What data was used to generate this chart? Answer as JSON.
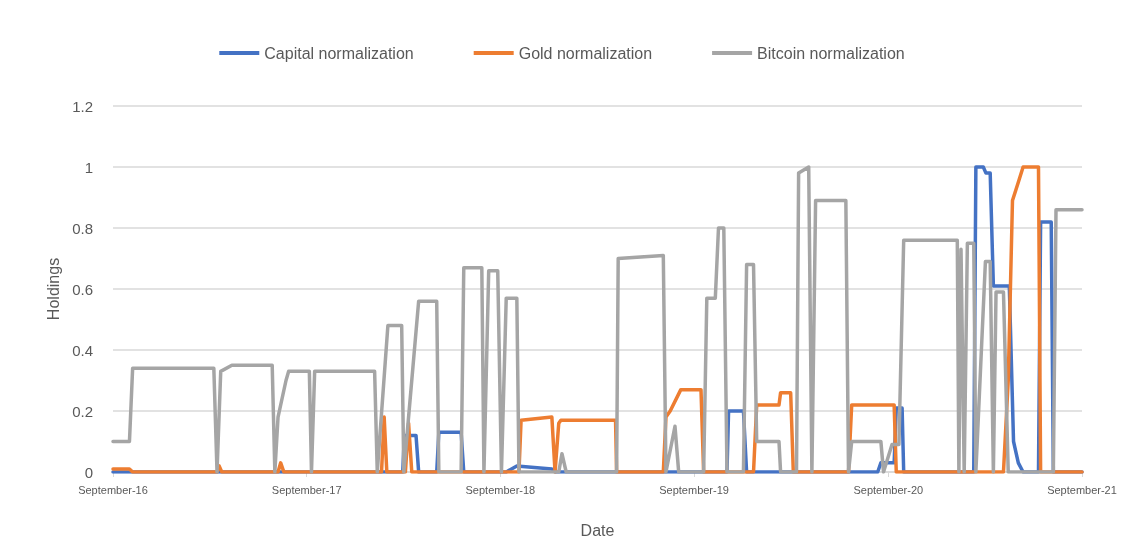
{
  "chart_data": {
    "type": "line",
    "xlabel": "Date",
    "ylabel": "Holdings",
    "xlim": [
      "2016-09-01",
      "2021-09-01"
    ],
    "xticks": [
      {
        "value": "2016-09-01",
        "label": "September-16"
      },
      {
        "value": "2017-09-01",
        "label": "September-17"
      },
      {
        "value": "2018-09-01",
        "label": "September-18"
      },
      {
        "value": "2019-09-01",
        "label": "September-19"
      },
      {
        "value": "2020-09-01",
        "label": "September-20"
      },
      {
        "value": "2021-09-01",
        "label": "September-21"
      }
    ],
    "ylim": [
      0,
      1.2
    ],
    "yticks": [
      0,
      0.2,
      0.4,
      0.6,
      0.8,
      1,
      1.2
    ],
    "grid": "y",
    "legend": "top",
    "marker": "none",
    "line_style": "solid",
    "series": [
      {
        "name": "Capital normalization",
        "color": "#4472c4",
        "x": [
          "2016-09-01",
          "2018-03-01",
          "2018-03-04",
          "2018-03-26",
          "2018-03-31",
          "2018-05-04",
          "2018-05-08",
          "2018-06-19",
          "2018-06-24",
          "2018-09-12",
          "2018-10-02",
          "2018-12-07",
          "2018-12-13",
          "2019-09-19",
          "2019-11-02",
          "2019-11-05",
          "2019-12-03",
          "2019-12-09",
          "2020-08-12",
          "2020-08-18",
          "2020-09-12",
          "2020-09-16",
          "2020-09-27",
          "2020-09-30",
          "2021-02-09",
          "2021-02-13",
          "2021-02-27",
          "2021-03-04",
          "2021-03-12",
          "2021-03-18",
          "2021-04-17",
          "2021-04-25",
          "2021-05-04",
          "2021-05-13",
          "2021-06-11",
          "2021-06-15",
          "2021-07-05",
          "2021-07-09",
          "2021-09-01"
        ],
        "values": [
          0,
          0,
          0.12,
          0.12,
          0,
          0,
          0.13,
          0.13,
          0,
          0,
          0.02,
          0.01,
          0,
          0,
          0,
          0.2,
          0.2,
          0,
          0,
          0.03,
          0.03,
          0.21,
          0.21,
          0,
          0,
          1.0,
          1.0,
          0.98,
          0.98,
          0.61,
          0.61,
          0.1,
          0.03,
          0,
          0,
          0.82,
          0.82,
          0,
          0
        ]
      },
      {
        "name": "Gold normalization",
        "color": "#ed7d31",
        "x": [
          "2016-09-01",
          "2016-10-02",
          "2016-10-08",
          "2017-03-16",
          "2017-03-20",
          "2017-03-25",
          "2017-07-09",
          "2017-07-14",
          "2017-07-20",
          "2018-01-20",
          "2018-01-25",
          "2018-01-30",
          "2018-03-06",
          "2018-03-12",
          "2018-03-18",
          "2018-10-06",
          "2018-10-10",
          "2018-12-07",
          "2018-12-13",
          "2018-12-20",
          "2018-12-24",
          "2019-04-06",
          "2019-04-08",
          "2019-07-05",
          "2019-07-10",
          "2019-07-18",
          "2019-08-07",
          "2019-09-14",
          "2019-09-19",
          "2019-12-22",
          "2019-12-28",
          "2020-02-08",
          "2020-02-11",
          "2020-03-01",
          "2020-03-06",
          "2020-06-18",
          "2020-06-24",
          "2020-09-12",
          "2020-09-16",
          "2021-04-06",
          "2021-04-15",
          "2021-04-23",
          "2021-05-04",
          "2021-05-13",
          "2021-06-11",
          "2021-06-15",
          "2021-09-01"
        ],
        "values": [
          0.01,
          0.01,
          0,
          0,
          0.02,
          0,
          0,
          0.03,
          0,
          0,
          0.18,
          0,
          0,
          0.16,
          0,
          0,
          0.17,
          0.18,
          0,
          0.16,
          0.17,
          0.17,
          0,
          0,
          0.18,
          0.2,
          0.27,
          0.27,
          0,
          0,
          0.22,
          0.22,
          0.26,
          0.26,
          0,
          0,
          0.22,
          0.22,
          0,
          0,
          0.3,
          0.89,
          0.95,
          1.0,
          1.0,
          0,
          0
        ]
      },
      {
        "name": "Bitcoin normalization",
        "color": "#a5a5a5",
        "x": [
          "2016-09-01",
          "2016-10-02",
          "2016-10-08",
          "2017-03-10",
          "2017-03-16",
          "2017-03-23",
          "2017-04-13",
          "2017-06-28",
          "2017-07-03",
          "2017-07-09",
          "2017-07-24",
          "2017-07-29",
          "2017-09-06",
          "2017-09-10",
          "2017-09-16",
          "2018-01-07",
          "2018-01-12",
          "2018-02-01",
          "2018-02-27",
          "2018-03-03",
          "2018-03-31",
          "2018-05-04",
          "2018-05-08",
          "2018-06-19",
          "2018-06-24",
          "2018-07-28",
          "2018-08-01",
          "2018-08-10",
          "2018-08-27",
          "2018-09-03",
          "2018-09-12",
          "2018-10-02",
          "2018-10-06",
          "2018-12-20",
          "2018-12-26",
          "2019-01-03",
          "2019-04-08",
          "2019-04-11",
          "2019-07-05",
          "2019-07-10",
          "2019-07-27",
          "2019-08-03",
          "2019-09-19",
          "2019-09-25",
          "2019-10-11",
          "2019-10-17",
          "2019-10-27",
          "2019-11-02",
          "2019-12-03",
          "2019-12-09",
          "2019-12-22",
          "2019-12-28",
          "2020-02-08",
          "2020-02-11",
          "2020-03-12",
          "2020-03-16",
          "2020-04-04",
          "2020-04-10",
          "2020-04-17",
          "2020-06-13",
          "2020-06-18",
          "2020-06-24",
          "2020-08-18",
          "2020-08-23",
          "2020-09-08",
          "2020-09-21",
          "2020-09-30",
          "2021-01-09",
          "2021-01-12",
          "2021-01-16",
          "2021-01-22",
          "2021-01-28",
          "2021-02-09",
          "2021-02-13",
          "2021-03-03",
          "2021-03-12",
          "2021-03-18",
          "2021-03-23",
          "2021-04-06",
          "2021-04-15",
          "2021-07-09",
          "2021-07-14",
          "2021-09-01"
        ],
        "values": [
          0.1,
          0.1,
          0.34,
          0.34,
          0,
          0.33,
          0.35,
          0.35,
          0,
          0.18,
          0.3,
          0.33,
          0.33,
          0,
          0.33,
          0.33,
          0,
          0.48,
          0.48,
          0,
          0.56,
          0.56,
          0,
          0,
          0.67,
          0.67,
          0,
          0.66,
          0.66,
          0,
          0.57,
          0.57,
          0,
          0,
          0.06,
          0,
          0,
          0.7,
          0.71,
          0,
          0.15,
          0,
          0,
          0.57,
          0.57,
          0.8,
          0.8,
          0,
          0,
          0.68,
          0.68,
          0.1,
          0.1,
          0,
          0,
          0.98,
          1.0,
          0,
          0.89,
          0.89,
          0,
          0.1,
          0.1,
          0,
          0.09,
          0.09,
          0.76,
          0.76,
          0,
          0.73,
          0,
          0.75,
          0.75,
          0,
          0.69,
          0.69,
          0,
          0.59,
          0.59,
          0,
          0,
          0.86,
          0.86
        ]
      }
    ]
  }
}
